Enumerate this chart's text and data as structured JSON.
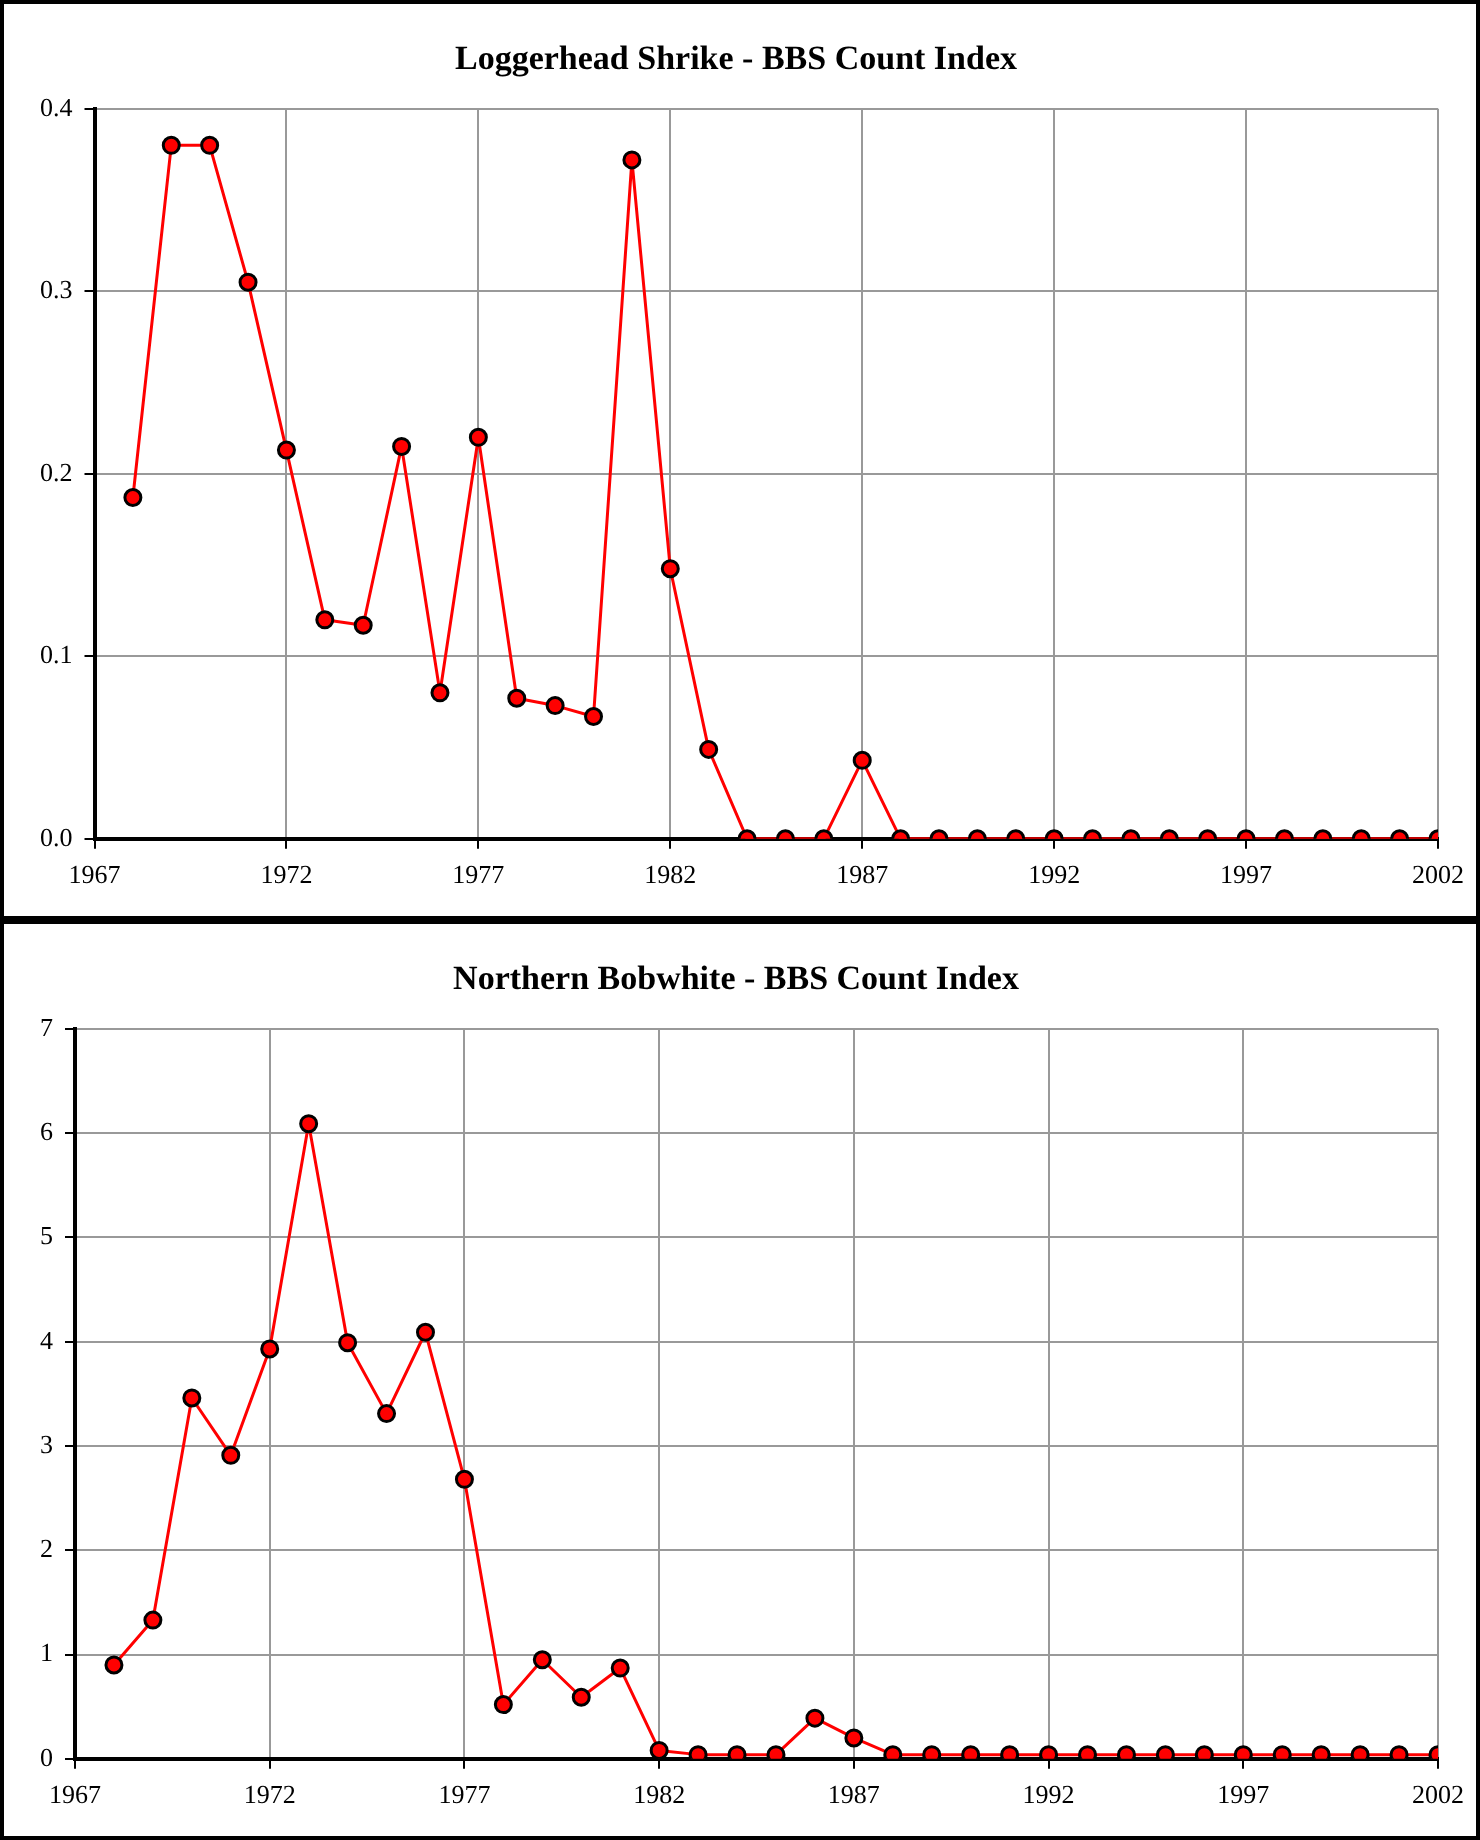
{
  "chart_data": [
    {
      "type": "line",
      "title": "Loggerhead Shrike - BBS Count Index",
      "x": [
        1968,
        1969,
        1970,
        1971,
        1972,
        1973,
        1974,
        1975,
        1976,
        1977,
        1978,
        1979,
        1980,
        1981,
        1982,
        1983,
        1984,
        1985,
        1986,
        1987,
        1988,
        1989,
        1990,
        1991,
        1992,
        1993,
        1994,
        1995,
        1996,
        1997,
        1998,
        1999,
        2000,
        2001,
        2002
      ],
      "series": [
        {
          "color": "#ff0000",
          "values": [
            0.187,
            0.38,
            0.38,
            0.305,
            0.213,
            0.12,
            0.117,
            0.215,
            0.08,
            0.22,
            0.077,
            0.073,
            0.067,
            0.372,
            0.148,
            0.049,
            0,
            0,
            0,
            0.043,
            0,
            0,
            0,
            0,
            0,
            0,
            0,
            0,
            0,
            0,
            0,
            0,
            0,
            0,
            0
          ]
        }
      ],
      "xlim": [
        1967,
        2002
      ],
      "xticks": [
        1967,
        1972,
        1977,
        1982,
        1987,
        1992,
        1997,
        2002
      ],
      "ylim": [
        0,
        0.4
      ],
      "yticks": [
        {
          "value": 0,
          "label": "0.0"
        },
        0.1,
        0.2,
        0.3,
        0.4
      ],
      "grid": true,
      "legend": false,
      "marker": "circle",
      "line_style": "solid"
    },
    {
      "type": "line",
      "title": "Northern Bobwhite - BBS Count Index",
      "x": [
        1968,
        1969,
        1970,
        1971,
        1972,
        1973,
        1974,
        1975,
        1976,
        1977,
        1978,
        1979,
        1980,
        1981,
        1982,
        1983,
        1984,
        1985,
        1986,
        1987,
        1988,
        1989,
        1990,
        1991,
        1992,
        1993,
        1994,
        1995,
        1996,
        1997,
        1998,
        1999,
        2000,
        2001,
        2002
      ],
      "series": [
        {
          "color": "#ff0000",
          "values": [
            0.9,
            1.33,
            3.46,
            2.91,
            3.93,
            6.09,
            3.99,
            3.31,
            4.09,
            2.68,
            0.52,
            0.95,
            0.59,
            0.87,
            0.08,
            0.04,
            0.04,
            0.04,
            0.39,
            0.2,
            0.04,
            0.04,
            0.04,
            0.04,
            0.04,
            0.04,
            0.04,
            0.04,
            0.04,
            0.04,
            0.04,
            0.04,
            0.04,
            0.04,
            0.04
          ]
        }
      ],
      "xlim": [
        1967,
        2002
      ],
      "xticks": [
        1967,
        1972,
        1977,
        1982,
        1987,
        1992,
        1997,
        2002
      ],
      "ylim": [
        0,
        7
      ],
      "yticks": [
        0,
        1,
        2,
        3,
        4,
        5,
        6,
        7
      ],
      "grid": true,
      "legend": false,
      "marker": "circle",
      "line_style": "solid"
    }
  ]
}
